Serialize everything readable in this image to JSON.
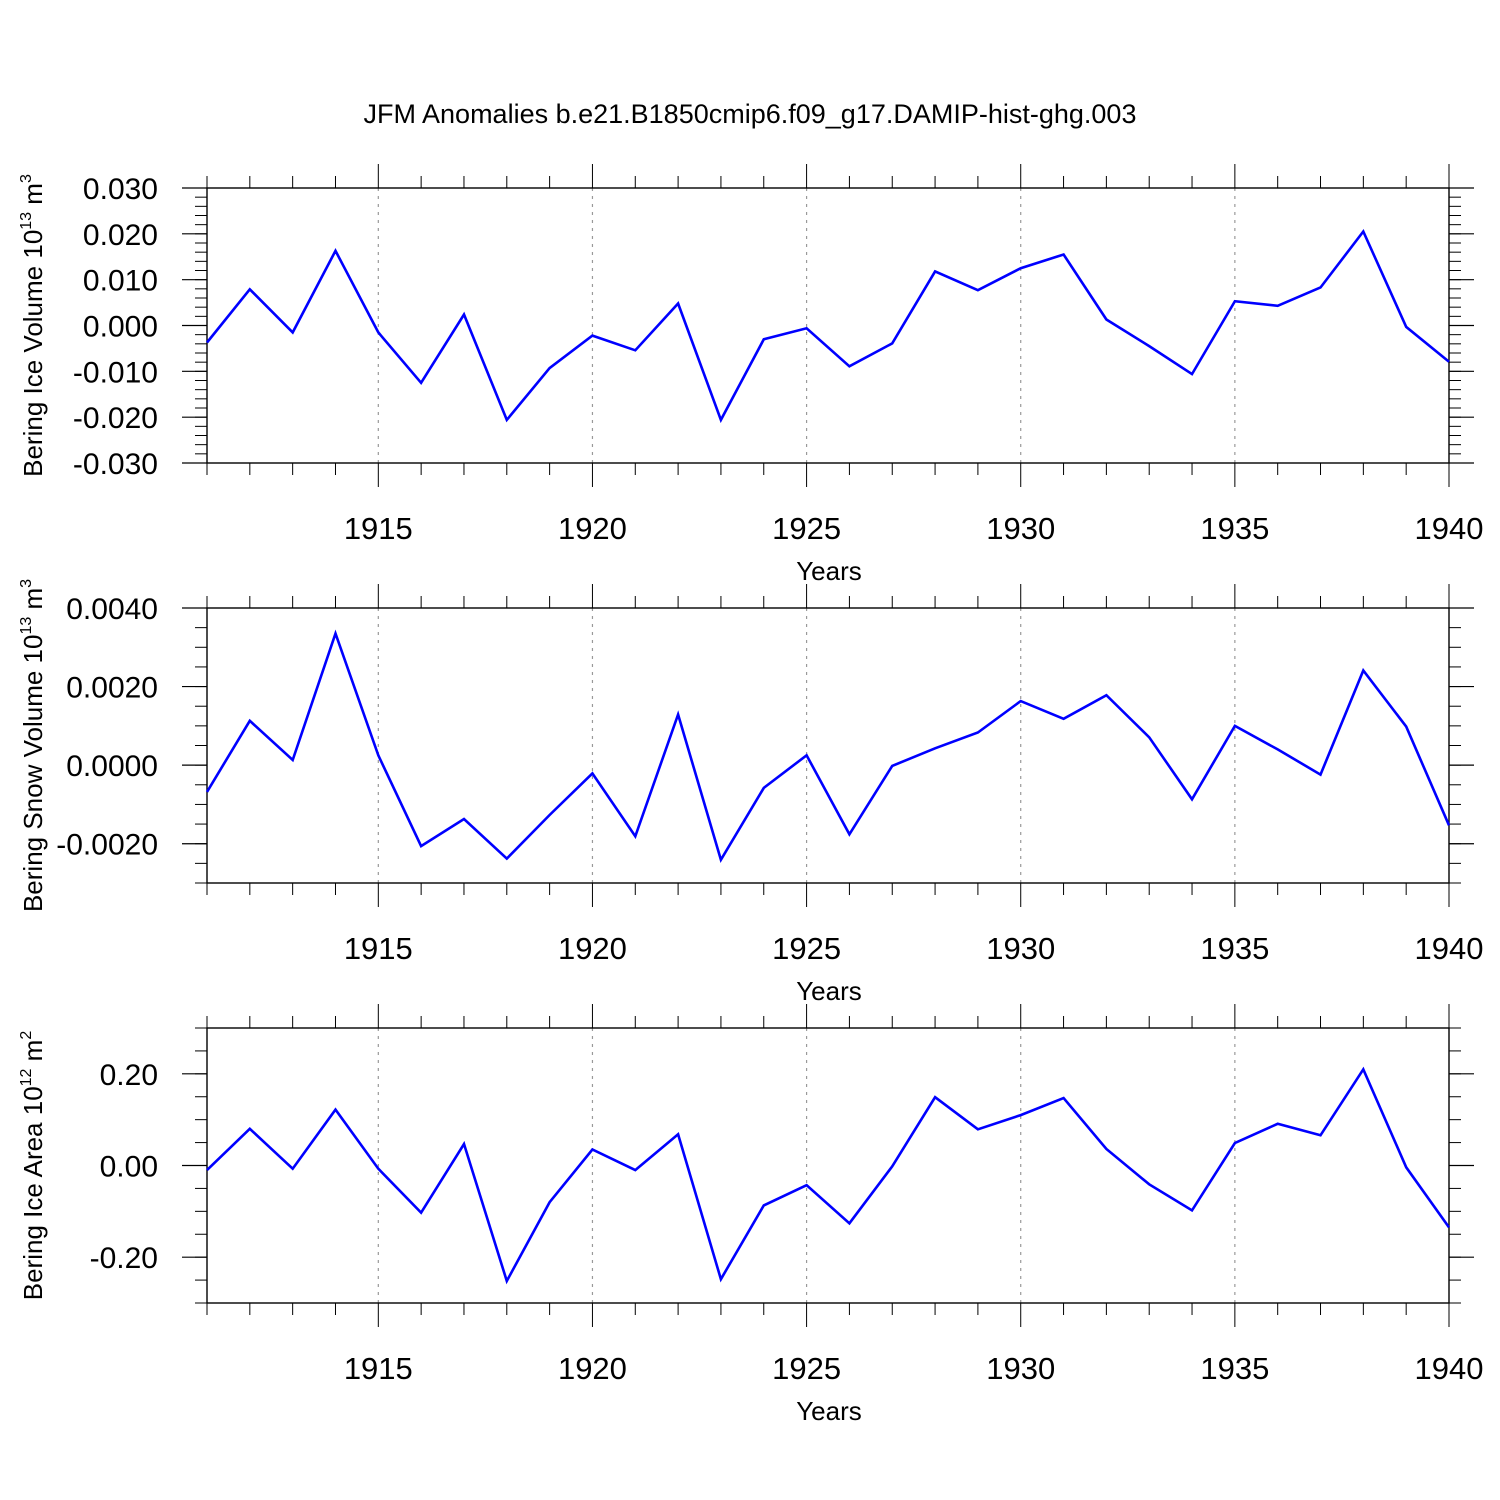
{
  "title": "JFM Anomalies b.e21.B1850cmip6.f09_g17.DAMIP-hist-ghg.003",
  "colors": {
    "line": "#0000ff",
    "axis": "#000000",
    "grid": "#999999"
  },
  "chart_data": [
    {
      "type": "line",
      "ylabel": "Bering Ice Volume",
      "units_base": "10",
      "units_exp": "13",
      "units_unit": "m",
      "units_unit_exp": "3",
      "xlabel": "Years",
      "xlim": [
        1911,
        1940
      ],
      "ylim": [
        -0.03,
        0.03
      ],
      "yticks": [
        -0.03,
        -0.02,
        -0.01,
        0.0,
        0.01,
        0.02,
        0.03
      ],
      "ytick_labels": [
        "-0.030",
        "-0.020",
        "-0.010",
        "0.000",
        "0.010",
        "0.020",
        "0.030"
      ],
      "yminor_step": 0.002,
      "xticks": [
        1915,
        1920,
        1925,
        1930,
        1935,
        1940
      ],
      "xtick_labels": [
        "1915",
        "1920",
        "1925",
        "1930",
        "1935",
        "1940"
      ],
      "x": [
        1911,
        1912,
        1913,
        1914,
        1915,
        1916,
        1917,
        1918,
        1919,
        1920,
        1921,
        1922,
        1923,
        1924,
        1925,
        1926,
        1927,
        1928,
        1929,
        1930,
        1931,
        1932,
        1933,
        1934,
        1935,
        1936,
        1937,
        1938,
        1939,
        1940
      ],
      "values": [
        -0.0037,
        0.0079,
        -0.0015,
        0.0163,
        -0.0015,
        -0.0125,
        0.0024,
        -0.0206,
        -0.0093,
        -0.0022,
        -0.0054,
        0.0048,
        -0.0206,
        -0.003,
        -0.0006,
        -0.0089,
        -0.0039,
        0.0118,
        0.0077,
        0.0125,
        0.0155,
        0.0013,
        -0.0045,
        -0.0106,
        0.0053,
        0.0043,
        0.0083,
        0.0205,
        -0.0003,
        -0.0079
      ]
    },
    {
      "type": "line",
      "ylabel": "Bering Snow Volume",
      "units_base": "10",
      "units_exp": "13",
      "units_unit": "m",
      "units_unit_exp": "3",
      "xlabel": "Years",
      "xlim": [
        1911,
        1940
      ],
      "ylim": [
        -0.003,
        0.004
      ],
      "yticks": [
        -0.002,
        0.0,
        0.002,
        0.004
      ],
      "ytick_labels": [
        "-0.0020",
        "0.0000",
        "0.0020",
        "0.0040"
      ],
      "yminor_step": 0.0005,
      "xticks": [
        1915,
        1920,
        1925,
        1930,
        1935,
        1940
      ],
      "xtick_labels": [
        "1915",
        "1920",
        "1925",
        "1930",
        "1935",
        "1940"
      ],
      "x": [
        1911,
        1912,
        1913,
        1914,
        1915,
        1916,
        1917,
        1918,
        1919,
        1920,
        1921,
        1922,
        1923,
        1924,
        1925,
        1926,
        1927,
        1928,
        1929,
        1930,
        1931,
        1932,
        1933,
        1934,
        1935,
        1936,
        1937,
        1938,
        1939,
        1940
      ],
      "values": [
        -0.00068,
        0.00113,
        0.00013,
        0.00335,
        0.00025,
        -0.00206,
        -0.00137,
        -0.00238,
        -0.00127,
        -0.00021,
        -0.00181,
        0.00129,
        -0.00241,
        -0.00058,
        0.00025,
        -0.00176,
        -2e-05,
        0.00043,
        0.00083,
        0.00163,
        0.00118,
        0.00178,
        0.00071,
        -0.00087,
        0.001,
        0.0004,
        -0.00024,
        0.00241,
        0.00098,
        -0.00153
      ]
    },
    {
      "type": "line",
      "ylabel": "Bering Ice Area",
      "units_base": "10",
      "units_exp": "12",
      "units_unit": "m",
      "units_unit_exp": "2",
      "xlabel": "Years",
      "xlim": [
        1911,
        1940
      ],
      "ylim": [
        -0.3,
        0.3
      ],
      "yticks": [
        -0.2,
        0.0,
        0.2
      ],
      "ytick_labels": [
        "-0.20",
        "0.00",
        "0.20"
      ],
      "yminor_step": 0.05,
      "xticks": [
        1915,
        1920,
        1925,
        1930,
        1935,
        1940
      ],
      "xtick_labels": [
        "1915",
        "1920",
        "1925",
        "1930",
        "1935",
        "1940"
      ],
      "x": [
        1911,
        1912,
        1913,
        1914,
        1915,
        1916,
        1917,
        1918,
        1919,
        1920,
        1921,
        1922,
        1923,
        1924,
        1925,
        1926,
        1927,
        1928,
        1929,
        1930,
        1931,
        1932,
        1933,
        1934,
        1935,
        1936,
        1937,
        1938,
        1939,
        1940
      ],
      "values": [
        -0.01,
        0.08,
        -0.007,
        0.122,
        -0.007,
        -0.103,
        0.047,
        -0.252,
        -0.08,
        0.035,
        -0.01,
        0.068,
        -0.248,
        -0.087,
        -0.043,
        -0.126,
        -0.002,
        0.149,
        0.079,
        0.11,
        0.147,
        0.036,
        -0.041,
        -0.098,
        0.049,
        0.091,
        0.066,
        0.21,
        -0.004,
        -0.135
      ]
    }
  ]
}
